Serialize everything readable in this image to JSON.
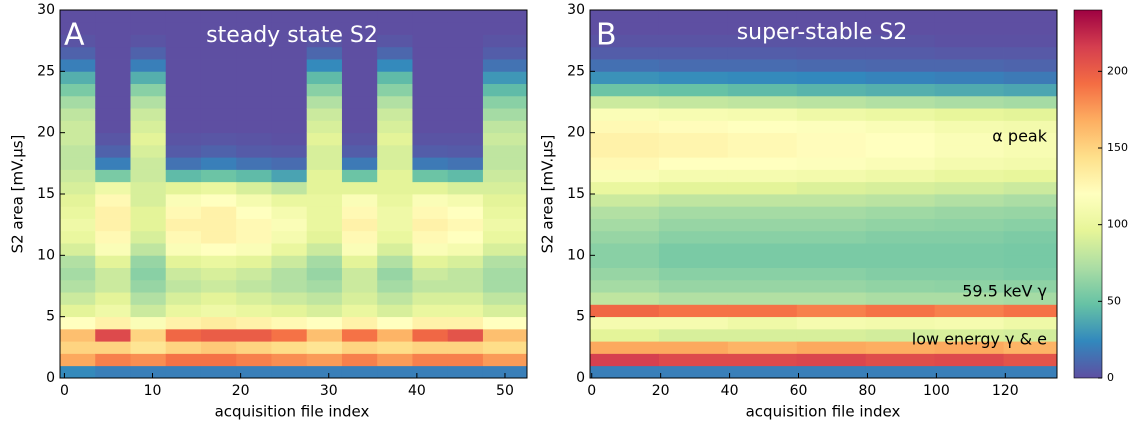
{
  "chart_data": [
    {
      "type": "heatmap",
      "label": "A",
      "title": "steady state S2",
      "xlabel": "acquisition file index",
      "ylabel": "S2 area [mV.μs]",
      "xlim": [
        -0.5,
        52.5
      ],
      "ylim": [
        0,
        30
      ],
      "xticks": [
        0,
        10,
        20,
        30,
        40,
        50
      ],
      "yticks": [
        0,
        5,
        10,
        15,
        20,
        25,
        30
      ],
      "x_bins": [
        -0.5,
        3.5,
        7.5,
        11.5,
        15.5,
        19.5,
        23.5,
        27.5,
        31.5,
        35.5,
        39.5,
        43.5,
        47.5,
        52.5
      ],
      "y_bins": [
        0,
        1,
        2,
        3,
        4,
        5,
        6,
        7,
        8,
        9,
        10,
        11,
        12,
        13,
        14,
        15,
        16,
        17,
        18,
        19,
        20,
        21,
        22,
        23,
        24,
        25,
        26,
        27,
        28,
        29,
        30
      ],
      "z": [
        [
          25,
          170,
          150,
          160,
          120,
          95,
          85,
          75,
          70,
          75,
          90,
          100,
          105,
          100,
          95,
          90,
          85,
          80,
          80,
          85,
          85,
          80,
          70,
          55,
          40,
          20,
          8,
          2,
          0,
          0
        ],
        [
          20,
          185,
          150,
          210,
          130,
          105,
          95,
          85,
          85,
          95,
          115,
          125,
          130,
          130,
          125,
          105,
          55,
          20,
          8,
          3,
          0,
          0,
          0,
          0,
          0,
          0,
          0,
          0,
          0,
          0
        ],
        [
          20,
          180,
          140,
          150,
          115,
          85,
          75,
          65,
          60,
          65,
          80,
          90,
          95,
          95,
          90,
          90,
          85,
          85,
          90,
          95,
          90,
          85,
          75,
          60,
          40,
          20,
          8,
          2,
          0,
          0
        ],
        [
          20,
          190,
          150,
          195,
          130,
          100,
          90,
          80,
          85,
          95,
          115,
          125,
          130,
          125,
          115,
          95,
          45,
          15,
          5,
          2,
          0,
          0,
          0,
          0,
          0,
          0,
          0,
          0,
          0,
          0
        ],
        [
          20,
          190,
          155,
          200,
          135,
          105,
          95,
          85,
          90,
          100,
          120,
          130,
          130,
          130,
          120,
          100,
          50,
          20,
          8,
          3,
          0,
          0,
          0,
          0,
          0,
          0,
          0,
          0,
          0,
          0
        ],
        [
          20,
          185,
          150,
          200,
          130,
          100,
          90,
          80,
          85,
          95,
          115,
          125,
          125,
          120,
          110,
          90,
          45,
          15,
          5,
          2,
          0,
          0,
          0,
          0,
          0,
          0,
          0,
          0,
          0,
          0
        ],
        [
          20,
          180,
          145,
          190,
          125,
          95,
          85,
          75,
          75,
          85,
          100,
          110,
          115,
          110,
          100,
          80,
          35,
          12,
          4,
          1,
          0,
          0,
          0,
          0,
          0,
          0,
          0,
          0,
          0,
          0
        ],
        [
          20,
          175,
          140,
          160,
          120,
          90,
          80,
          70,
          65,
          70,
          85,
          95,
          100,
          100,
          100,
          95,
          95,
          90,
          90,
          95,
          90,
          85,
          75,
          60,
          45,
          25,
          10,
          3,
          0,
          0
        ],
        [
          20,
          185,
          150,
          190,
          130,
          100,
          90,
          85,
          85,
          95,
          115,
          125,
          130,
          125,
          115,
          95,
          50,
          18,
          6,
          2,
          0,
          0,
          0,
          0,
          0,
          0,
          0,
          0,
          0,
          0
        ],
        [
          20,
          175,
          145,
          165,
          120,
          90,
          80,
          70,
          65,
          75,
          90,
          100,
          105,
          105,
          100,
          95,
          95,
          90,
          90,
          95,
          90,
          85,
          75,
          60,
          45,
          25,
          10,
          3,
          0,
          0
        ],
        [
          20,
          185,
          150,
          195,
          130,
          100,
          90,
          80,
          85,
          95,
          115,
          125,
          130,
          125,
          115,
          95,
          50,
          18,
          6,
          2,
          0,
          0,
          0,
          0,
          0,
          0,
          0,
          0,
          0,
          0
        ],
        [
          20,
          185,
          150,
          205,
          130,
          100,
          90,
          80,
          80,
          90,
          110,
          120,
          125,
          120,
          110,
          90,
          45,
          15,
          5,
          2,
          0,
          0,
          0,
          0,
          0,
          0,
          0,
          0,
          0,
          0
        ],
        [
          20,
          175,
          145,
          160,
          120,
          90,
          80,
          70,
          70,
          75,
          90,
          100,
          105,
          100,
          95,
          90,
          85,
          80,
          80,
          85,
          80,
          70,
          60,
          45,
          30,
          15,
          6,
          2,
          0,
          0
        ]
      ]
    },
    {
      "type": "heatmap",
      "label": "B",
      "title": "super-stable S2",
      "xlabel": "acquisition file index",
      "ylabel": "S2 area [mV.μs]",
      "xlim": [
        -0.5,
        135
      ],
      "ylim": [
        0,
        30
      ],
      "xticks": [
        0,
        20,
        40,
        60,
        80,
        100,
        120
      ],
      "yticks": [
        0,
        5,
        10,
        15,
        20,
        25,
        30
      ],
      "x_bins": [
        -0.5,
        19.5,
        39.5,
        59.5,
        79.5,
        99.5,
        119.5,
        135
      ],
      "y_bins": [
        0,
        1,
        2,
        3,
        4,
        5,
        6,
        7,
        8,
        9,
        10,
        11,
        12,
        13,
        14,
        15,
        16,
        17,
        18,
        19,
        20,
        21,
        22,
        23,
        24,
        25,
        26,
        27,
        28,
        29,
        30
      ],
      "annotations": [
        "α peak",
        "59.5 keV γ",
        "low energy γ & e"
      ],
      "z": [
        [
          20,
          215,
          170,
          95,
          110,
          195,
          80,
          70,
          65,
          60,
          60,
          65,
          70,
          75,
          85,
          100,
          115,
          125,
          130,
          130,
          125,
          115,
          85,
          50,
          28,
          14,
          6,
          2,
          0,
          0
        ],
        [
          20,
          210,
          170,
          90,
          110,
          190,
          75,
          65,
          60,
          55,
          55,
          60,
          65,
          70,
          80,
          95,
          110,
          120,
          128,
          128,
          122,
          112,
          82,
          48,
          26,
          12,
          6,
          2,
          0,
          0
        ],
        [
          20,
          210,
          165,
          90,
          105,
          190,
          75,
          65,
          60,
          55,
          55,
          60,
          65,
          70,
          80,
          95,
          110,
          120,
          125,
          125,
          120,
          110,
          80,
          45,
          25,
          12,
          6,
          2,
          0,
          0
        ],
        [
          20,
          212,
          170,
          90,
          110,
          185,
          75,
          65,
          60,
          55,
          55,
          60,
          65,
          70,
          80,
          92,
          108,
          118,
          122,
          122,
          118,
          105,
          78,
          42,
          24,
          11,
          5,
          2,
          0,
          0
        ],
        [
          20,
          208,
          168,
          88,
          108,
          190,
          72,
          63,
          58,
          55,
          55,
          58,
          63,
          68,
          78,
          90,
          105,
          115,
          120,
          120,
          115,
          102,
          75,
          40,
          22,
          10,
          5,
          2,
          0,
          0
        ],
        [
          20,
          210,
          170,
          90,
          110,
          185,
          72,
          62,
          58,
          55,
          55,
          58,
          62,
          66,
          75,
          88,
          100,
          110,
          115,
          115,
          110,
          98,
          72,
          38,
          20,
          10,
          4,
          1,
          0,
          0
        ],
        [
          20,
          205,
          165,
          88,
          105,
          190,
          70,
          62,
          56,
          54,
          54,
          56,
          60,
          65,
          72,
          85,
          98,
          108,
          112,
          112,
          108,
          95,
          70,
          36,
          18,
          9,
          4,
          1,
          0,
          0
        ]
      ]
    }
  ],
  "colorbar": {
    "clim": [
      0,
      240
    ],
    "ticks": [
      0,
      50,
      100,
      150,
      200
    ],
    "colors": [
      "#5e4fa2",
      "#3288bd",
      "#66c2a5",
      "#abdda4",
      "#e6f598",
      "#ffffbf",
      "#fee08b",
      "#fdae61",
      "#f46d43",
      "#d53e4f",
      "#9e0142"
    ]
  }
}
